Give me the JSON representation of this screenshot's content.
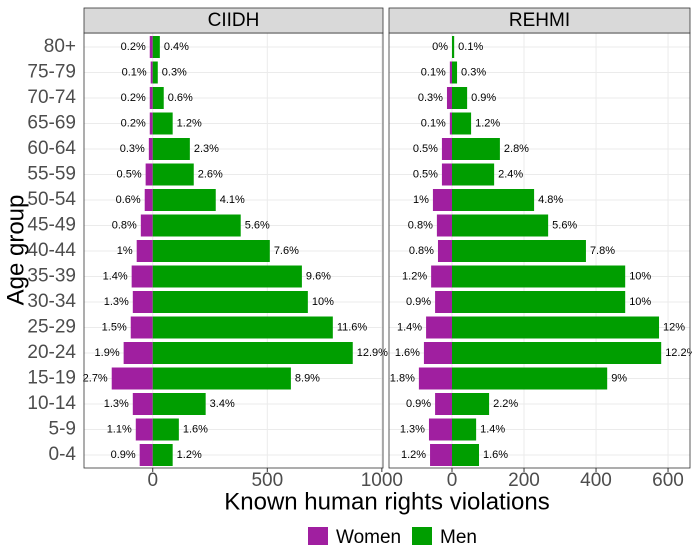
{
  "chart_data": [
    {
      "type": "bar",
      "orientation": "horizontal",
      "title": "CIIDH",
      "xlabel": "Known human rights violations",
      "ylabel": "Age group",
      "categories": [
        "80+",
        "75-79",
        "70-74",
        "65-69",
        "60-64",
        "55-59",
        "50-54",
        "45-49",
        "40-44",
        "35-39",
        "30-34",
        "25-29",
        "20-24",
        "15-19",
        "10-14",
        "5-9",
        "0-4"
      ],
      "series": [
        {
          "name": "Women",
          "color": "#a01fa0",
          "values": [
            -13,
            -9,
            -13,
            -13,
            -17,
            -31,
            -35,
            -52,
            -70,
            -92,
            -87,
            -96,
            -127,
            -179,
            -87,
            -74,
            -57
          ],
          "percent_labels": [
            "0.2%",
            "0.1%",
            "0.2%",
            "0.2%",
            "0.3%",
            "0.5%",
            "0.6%",
            "0.8%",
            "1%",
            "1.4%",
            "1.3%",
            "1.5%",
            "1.9%",
            "2.7%",
            "1.3%",
            "1.1%",
            "0.9%"
          ]
        },
        {
          "name": "Men",
          "color": "#009e00",
          "values": [
            31,
            22,
            48,
            87,
            162,
            179,
            275,
            384,
            511,
            651,
            677,
            786,
            873,
            603,
            231,
            114,
            87
          ],
          "percent_labels": [
            "0.4%",
            "0.3%",
            "0.6%",
            "1.2%",
            "2.3%",
            "2.6%",
            "4.1%",
            "5.6%",
            "7.6%",
            "9.6%",
            "10%",
            "11.6%",
            "12.9%",
            "8.9%",
            "3.4%",
            "1.6%",
            "1.2%"
          ]
        }
      ],
      "xlim": [
        -300,
        1005
      ],
      "xticks": [
        0,
        500,
        1000
      ],
      "grid": true
    },
    {
      "type": "bar",
      "orientation": "horizontal",
      "title": "REHMI",
      "series": [
        {
          "color": "#a01fa0",
          "values": [
            0,
            -6,
            -14,
            -6,
            -28,
            -28,
            -53,
            -42,
            -39,
            -58,
            -47,
            -72,
            -78,
            -92,
            -47,
            -64,
            -61
          ],
          "percent_labels": [
            "0%",
            "0.1%",
            "0.3%",
            "0.1%",
            "0.5%",
            "0.5%",
            "1%",
            "0.8%",
            "0.8%",
            "1.2%",
            "0.9%",
            "1.4%",
            "1.6%",
            "1.8%",
            "0.9%",
            "1.3%",
            "1.2%"
          ]
        },
        {
          "color": "#009e00",
          "values": [
            6,
            14,
            42,
            53,
            133,
            117,
            228,
            267,
            372,
            481,
            481,
            575,
            581,
            431,
            103,
            67,
            75
          ],
          "percent_labels": [
            "0.1%",
            "0.3%",
            "0.9%",
            "1.2%",
            "2.8%",
            "2.4%",
            "4.8%",
            "5.6%",
            "7.8%",
            "10%",
            "10%",
            "12%",
            "12.2%",
            "9%",
            "2.2%",
            "1.4%",
            "1.6%"
          ]
        }
      ],
      "xlim": [
        -175,
        661
      ],
      "xticks": [
        0,
        200,
        400,
        600
      ],
      "grid": true
    }
  ]
}
